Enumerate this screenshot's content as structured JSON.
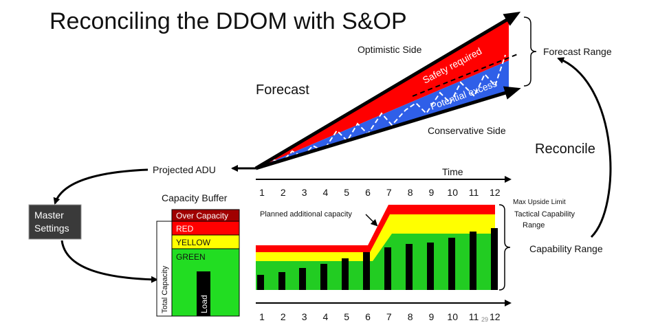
{
  "title": "Reconciling the DDOM with S&OP",
  "forecast": {
    "label": "Forecast",
    "optimistic": "Optimistic Side",
    "conservative": "Conservative Side",
    "safety": "Safety required",
    "excess": "Potential excess",
    "range": "Forecast Range"
  },
  "reconcile": "Reconcile",
  "projected_adu": "Projected ADU",
  "time": "Time",
  "periods": [
    "1",
    "2",
    "3",
    "4",
    "5",
    "6",
    "7",
    "8",
    "9",
    "10",
    "11",
    "12"
  ],
  "master_settings": [
    "Master",
    "Settings"
  ],
  "capacity_buffer": {
    "title": "Capacity Buffer",
    "zones": [
      "Over Capacity",
      "RED",
      "YELLOW",
      "GREEN"
    ],
    "total": "Total Capacity",
    "load": "Load"
  },
  "capability": {
    "planned": "Planned additional capacity",
    "max_upside": "Max Upside Limit",
    "tactical": [
      "Tactical Capability",
      "Range"
    ],
    "range": "Capability Range"
  },
  "slide_number": "29"
}
